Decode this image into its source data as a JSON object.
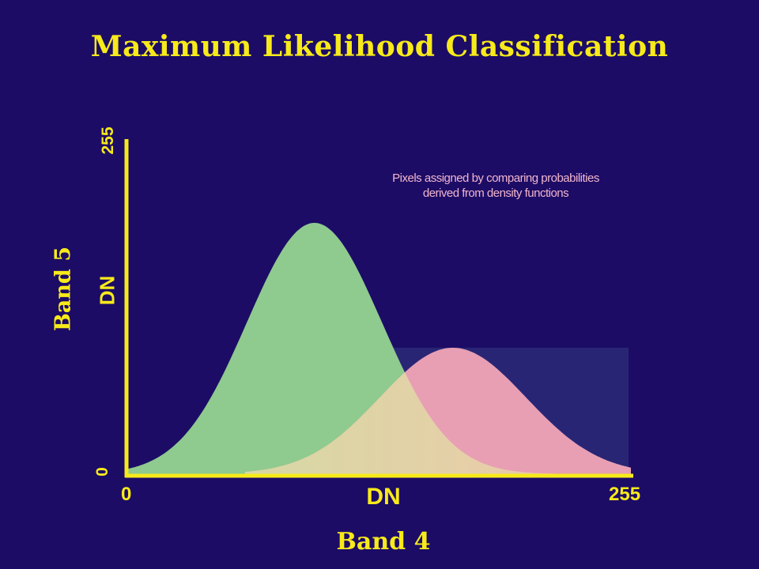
{
  "title": "Maximum Likelihood Classification",
  "annotation": {
    "line1": "Pixels assigned by comparing probabilities",
    "line2": "derived from density functions"
  },
  "y_axis": {
    "label": "Band 5",
    "unit_label": "DN",
    "min_label": "0",
    "max_label": "255"
  },
  "x_axis": {
    "label": "Band 4",
    "unit_label": "DN",
    "min_label": "0",
    "max_label": "255"
  },
  "colors": {
    "background": "#1c0c66",
    "axis": "#f7ea1a",
    "class_a_fill": "#8fca8f",
    "class_b_fill": "#f6a9b8",
    "overlap_fill": "#e2cfa6"
  },
  "density_curves": [
    {
      "name": "",
      "color": "#8fca8f",
      "peak_dn": 95,
      "spread_dn": 34
    },
    {
      "name": "",
      "color": "#f6a9b8",
      "peak_dn": 165,
      "spread_dn": 37
    }
  ]
}
